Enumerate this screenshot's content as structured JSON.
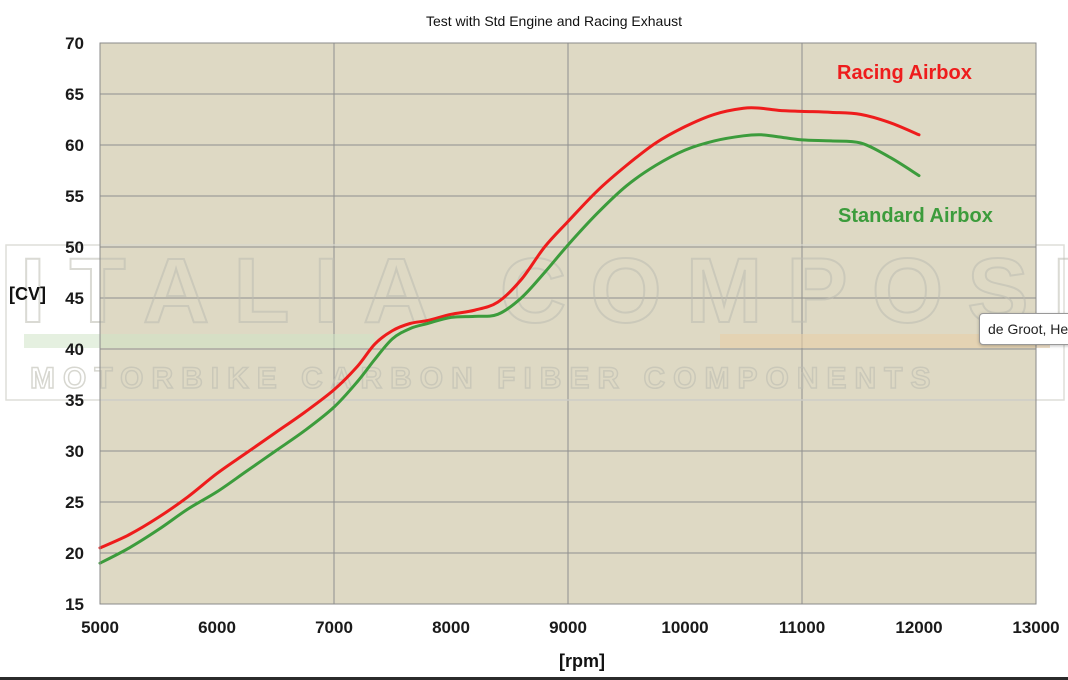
{
  "chart_data": {
    "type": "line",
    "title": "Test with Std Engine and Racing Exhaust",
    "xlabel": "[rpm]",
    "ylabel": "[CV]",
    "xlim": [
      5000,
      13000
    ],
    "ylim": [
      15,
      70
    ],
    "xticks": [
      5000,
      6000,
      7000,
      8000,
      9000,
      10000,
      11000,
      12000,
      13000
    ],
    "yticks": [
      15,
      20,
      25,
      30,
      35,
      40,
      45,
      50,
      55,
      60,
      65,
      70
    ],
    "grid": true,
    "legend": "inline labels, top-right",
    "background_color": "#ded9c4",
    "series": [
      {
        "name": "Racing Airbox",
        "color": "#ee1c1c",
        "x": [
          5000,
          5250,
          5500,
          5750,
          6000,
          6250,
          6500,
          6750,
          7000,
          7200,
          7350,
          7500,
          7650,
          7800,
          8000,
          8200,
          8400,
          8600,
          8800,
          9000,
          9250,
          9500,
          9750,
          10000,
          10250,
          10500,
          10650,
          10800,
          11000,
          11250,
          11500,
          11750,
          12000
        ],
        "values": [
          20.5,
          21.8,
          23.5,
          25.5,
          27.8,
          29.8,
          31.8,
          33.8,
          36.0,
          38.3,
          40.5,
          41.8,
          42.5,
          42.8,
          43.4,
          43.8,
          44.6,
          46.8,
          50.0,
          52.5,
          55.5,
          58.0,
          60.2,
          61.8,
          63.0,
          63.6,
          63.6,
          63.4,
          63.3,
          63.2,
          63.0,
          62.2,
          61.0
        ]
      },
      {
        "name": "Standard Airbox",
        "color": "#3c9c3c",
        "x": [
          5000,
          5250,
          5500,
          5750,
          6000,
          6250,
          6500,
          6750,
          7000,
          7200,
          7350,
          7500,
          7650,
          7800,
          8000,
          8200,
          8400,
          8600,
          8800,
          9000,
          9250,
          9500,
          9750,
          10000,
          10250,
          10500,
          10650,
          10800,
          11000,
          11250,
          11500,
          11750,
          12000
        ],
        "values": [
          19.0,
          20.5,
          22.3,
          24.3,
          26.0,
          28.0,
          30.0,
          32.0,
          34.3,
          36.8,
          39.0,
          41.0,
          42.0,
          42.5,
          43.1,
          43.2,
          43.4,
          45.0,
          47.5,
          50.2,
          53.3,
          56.0,
          58.0,
          59.5,
          60.4,
          60.9,
          61.0,
          60.8,
          60.5,
          60.4,
          60.2,
          58.8,
          57.0
        ]
      }
    ]
  },
  "watermark": {
    "line1": "ITALIA COMPOSITI",
    "line2": "MOTORBIKE CARBON FIBER COMPONENTS"
  },
  "tooltip": {
    "text": "de Groot, He"
  }
}
